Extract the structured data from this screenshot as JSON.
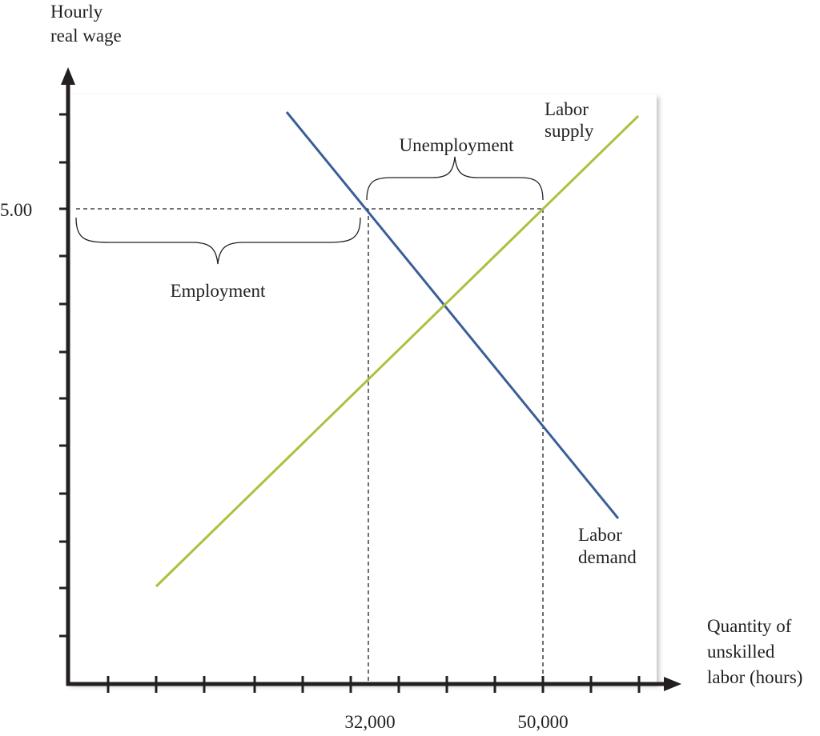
{
  "y_axis_label": [
    "Hourly",
    "real wage"
  ],
  "x_axis_label": [
    "Quantity of",
    "unskilled",
    "labor (hours)"
  ],
  "y_value_label": "5.00",
  "x_value_labels": [
    "32,000",
    "50,000"
  ],
  "curves": {
    "supply": [
      "Labor",
      "supply"
    ],
    "demand": [
      "Labor",
      "demand"
    ]
  },
  "annotations": {
    "unemployment": "Unemployment",
    "employment": "Employment"
  }
}
